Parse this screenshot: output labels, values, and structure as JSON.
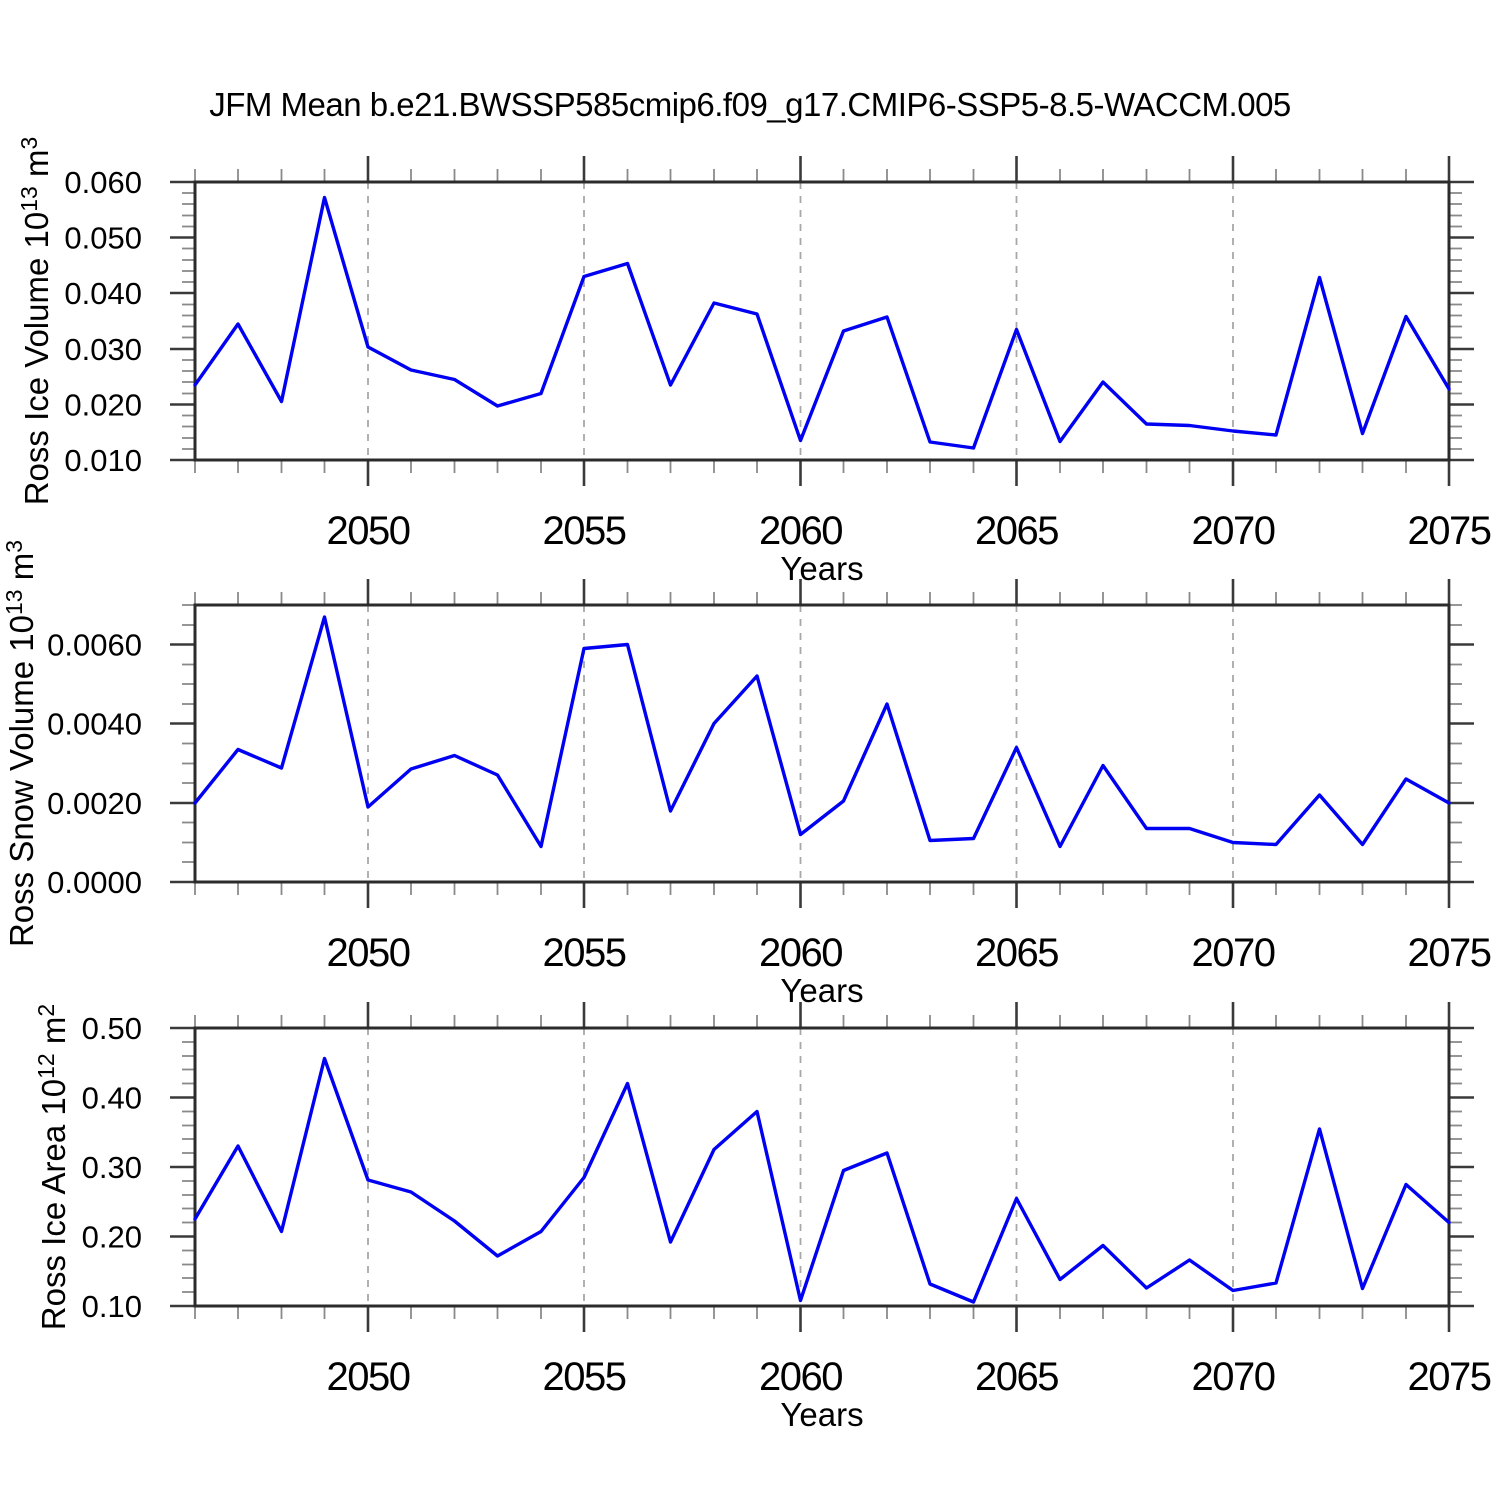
{
  "page": {
    "title": "JFM Mean b.e21.BWSSP585cmip6.f09_g17.CMIP6-SSP5-8.5-WACCM.005",
    "background": "#ffffff"
  },
  "style": {
    "line_color": "#0000f2",
    "frame_color": "#2b2b2b",
    "major_tick_color": "#3a3a3a",
    "minor_tick_color": "#8a8a8a",
    "grid_color": "#a8a8a8",
    "text_color": "#000000"
  },
  "chart_data": [
    {
      "type": "line",
      "name": "ross-ice-volume",
      "title": "",
      "xlabel": "Years",
      "ylabel_plain": "Ross Ice Volume 10^13 m^3",
      "ylabel_parts": [
        {
          "t": "Ross Ice Volume 10"
        },
        {
          "t": "13",
          "sup": true
        },
        {
          "t": " m"
        },
        {
          "t": "3",
          "sup": true
        }
      ],
      "x": [
        2046,
        2047,
        2048,
        2049,
        2050,
        2051,
        2052,
        2053,
        2054,
        2055,
        2056,
        2057,
        2058,
        2059,
        2060,
        2061,
        2062,
        2063,
        2064,
        2065,
        2066,
        2067,
        2068,
        2069,
        2070,
        2071,
        2072,
        2073,
        2074,
        2075
      ],
      "values": [
        0.0235,
        0.0345,
        0.0205,
        0.0572,
        0.0303,
        0.0262,
        0.0245,
        0.0197,
        0.022,
        0.043,
        0.0453,
        0.0235,
        0.0382,
        0.0363,
        0.0135,
        0.0332,
        0.0357,
        0.0132,
        0.0122,
        0.0335,
        0.0133,
        0.024,
        0.0165,
        0.0162,
        0.0152,
        0.0145,
        0.0428,
        0.0148,
        0.0358,
        0.0228
      ],
      "xlim": [
        2046,
        2075
      ],
      "ylim": [
        0.01,
        0.06
      ],
      "y_major_ticks": [
        0.01,
        0.02,
        0.03,
        0.04,
        0.05,
        0.06
      ],
      "y_tick_labels": [
        "0.010",
        "0.020",
        "0.030",
        "0.040",
        "0.050",
        "0.060"
      ],
      "y_minor_step": 0.002,
      "x_major_ticks": [
        2050,
        2055,
        2060,
        2065,
        2070,
        2075
      ],
      "x_tick_labels": [
        "2050",
        "2055",
        "2060",
        "2065",
        "2070",
        "2075"
      ],
      "x_minor_step": 1,
      "grid_x": [
        2050,
        2055,
        2060,
        2065,
        2070
      ],
      "grid_style": "dashed-vertical",
      "legend": "none"
    },
    {
      "type": "line",
      "name": "ross-snow-volume",
      "title": "",
      "xlabel": "Years",
      "ylabel_plain": "Ross Snow Volume 10^13 m^3",
      "ylabel_parts": [
        {
          "t": "Ross Snow Volume 10"
        },
        {
          "t": "13",
          "sup": true
        },
        {
          "t": " m"
        },
        {
          "t": "3",
          "sup": true
        }
      ],
      "x": [
        2046,
        2047,
        2048,
        2049,
        2050,
        2051,
        2052,
        2053,
        2054,
        2055,
        2056,
        2057,
        2058,
        2059,
        2060,
        2061,
        2062,
        2063,
        2064,
        2065,
        2066,
        2067,
        2068,
        2069,
        2070,
        2071,
        2072,
        2073,
        2074,
        2075
      ],
      "values": [
        0.002,
        0.00335,
        0.00288,
        0.0067,
        0.0019,
        0.00285,
        0.0032,
        0.0027,
        0.0009,
        0.0059,
        0.006,
        0.0018,
        0.004,
        0.0052,
        0.0012,
        0.00205,
        0.0045,
        0.00105,
        0.0011,
        0.0034,
        0.0009,
        0.00295,
        0.00135,
        0.00135,
        0.001,
        0.00095,
        0.0022,
        0.00095,
        0.0026,
        0.002
      ],
      "xlim": [
        2046,
        2075
      ],
      "ylim": [
        0.0,
        0.007
      ],
      "y_major_ticks": [
        0.0,
        0.002,
        0.004,
        0.006
      ],
      "y_tick_labels": [
        "0.0000",
        "0.0020",
        "0.0040",
        "0.0060"
      ],
      "y_minor_step": 0.0005,
      "x_major_ticks": [
        2050,
        2055,
        2060,
        2065,
        2070,
        2075
      ],
      "x_tick_labels": [
        "2050",
        "2055",
        "2060",
        "2065",
        "2070",
        "2075"
      ],
      "x_minor_step": 1,
      "grid_x": [
        2050,
        2055,
        2060,
        2065,
        2070
      ],
      "grid_style": "dashed-vertical",
      "legend": "none"
    },
    {
      "type": "line",
      "name": "ross-ice-area",
      "title": "",
      "xlabel": "Years",
      "ylabel_plain": "Ross Ice Area 10^12 m^2",
      "ylabel_parts": [
        {
          "t": "Ross Ice Area 10"
        },
        {
          "t": "12",
          "sup": true
        },
        {
          "t": " m"
        },
        {
          "t": "2",
          "sup": true
        }
      ],
      "x": [
        2046,
        2047,
        2048,
        2049,
        2050,
        2051,
        2052,
        2053,
        2054,
        2055,
        2056,
        2057,
        2058,
        2059,
        2060,
        2061,
        2062,
        2063,
        2064,
        2065,
        2066,
        2067,
        2068,
        2069,
        2070,
        2071,
        2072,
        2073,
        2074,
        2075
      ],
      "values": [
        0.225,
        0.33,
        0.207,
        0.456,
        0.281,
        0.264,
        0.222,
        0.172,
        0.207,
        0.285,
        0.42,
        0.192,
        0.325,
        0.38,
        0.108,
        0.295,
        0.32,
        0.132,
        0.106,
        0.255,
        0.138,
        0.187,
        0.126,
        0.166,
        0.122,
        0.133,
        0.355,
        0.125,
        0.275,
        0.22
      ],
      "xlim": [
        2046,
        2075
      ],
      "ylim": [
        0.1,
        0.5
      ],
      "y_major_ticks": [
        0.1,
        0.2,
        0.3,
        0.4,
        0.5
      ],
      "y_tick_labels": [
        "0.10",
        "0.20",
        "0.30",
        "0.40",
        "0.50"
      ],
      "y_minor_step": 0.02,
      "x_major_ticks": [
        2050,
        2055,
        2060,
        2065,
        2070,
        2075
      ],
      "x_tick_labels": [
        "2050",
        "2055",
        "2060",
        "2065",
        "2070",
        "2075"
      ],
      "x_minor_step": 1,
      "grid_x": [
        2050,
        2055,
        2060,
        2065,
        2070
      ],
      "grid_style": "dashed-vertical",
      "legend": "none"
    }
  ]
}
